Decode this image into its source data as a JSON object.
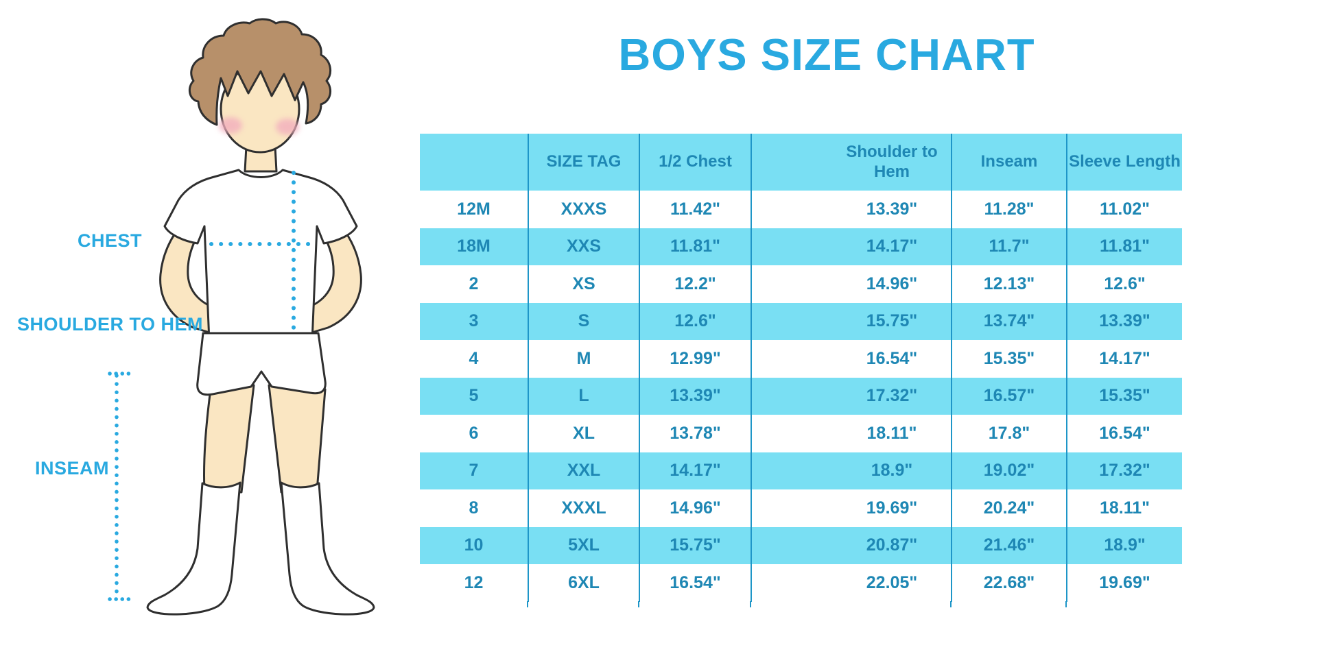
{
  "page": {
    "title": "BOYS SIZE CHART"
  },
  "diagram": {
    "figure": "boy-in-tshirt-shorts-and-socks-with-dotted-measurement-lines",
    "labels": {
      "chest": "CHEST",
      "shoulder_to_hem": "SHOULDER TO HEM",
      "inseam": "INSEAM"
    }
  },
  "chart_data": {
    "type": "table",
    "title": "BOYS SIZE CHART",
    "columns": [
      "",
      "SIZE TAG",
      "1/2 Chest",
      "Shoulder to Hem",
      "Inseam",
      "Sleeve Length"
    ],
    "rows": [
      [
        "12M",
        "XXXS",
        "11.42\"",
        "13.39\"",
        "11.28\"",
        "11.02\""
      ],
      [
        "18M",
        "XXS",
        "11.81\"",
        "14.17\"",
        "11.7\"",
        "11.81\""
      ],
      [
        "2",
        "XS",
        "12.2\"",
        "14.96\"",
        "12.13\"",
        "12.6\""
      ],
      [
        "3",
        "S",
        "12.6\"",
        "15.75\"",
        "13.74\"",
        "13.39\""
      ],
      [
        "4",
        "M",
        "12.99\"",
        "16.54\"",
        "15.35\"",
        "14.17\""
      ],
      [
        "5",
        "L",
        "13.39\"",
        "17.32\"",
        "16.57\"",
        "15.35\""
      ],
      [
        "6",
        "XL",
        "13.78\"",
        "18.11\"",
        "17.8\"",
        "16.54\""
      ],
      [
        "7",
        "XXL",
        "14.17\"",
        "18.9\"",
        "19.02\"",
        "17.32\""
      ],
      [
        "8",
        "XXXL",
        "14.96\"",
        "19.69\"",
        "20.24\"",
        "18.11\""
      ],
      [
        "10",
        "5XL",
        "15.75\"",
        "20.87\"",
        "21.46\"",
        "18.9\""
      ],
      [
        "12",
        "6XL",
        "16.54\"",
        "22.05\"",
        "22.68\"",
        "19.69\""
      ]
    ],
    "unit": "inches"
  },
  "colors": {
    "accent_blue": "#29A9E0",
    "table_stripe": "#79DFF3",
    "table_text": "#1E87B4",
    "grid_line": "#1E96C8",
    "skin": "#FAE6C2",
    "hair": "#B7906A",
    "blush": "#F3AFBE"
  }
}
